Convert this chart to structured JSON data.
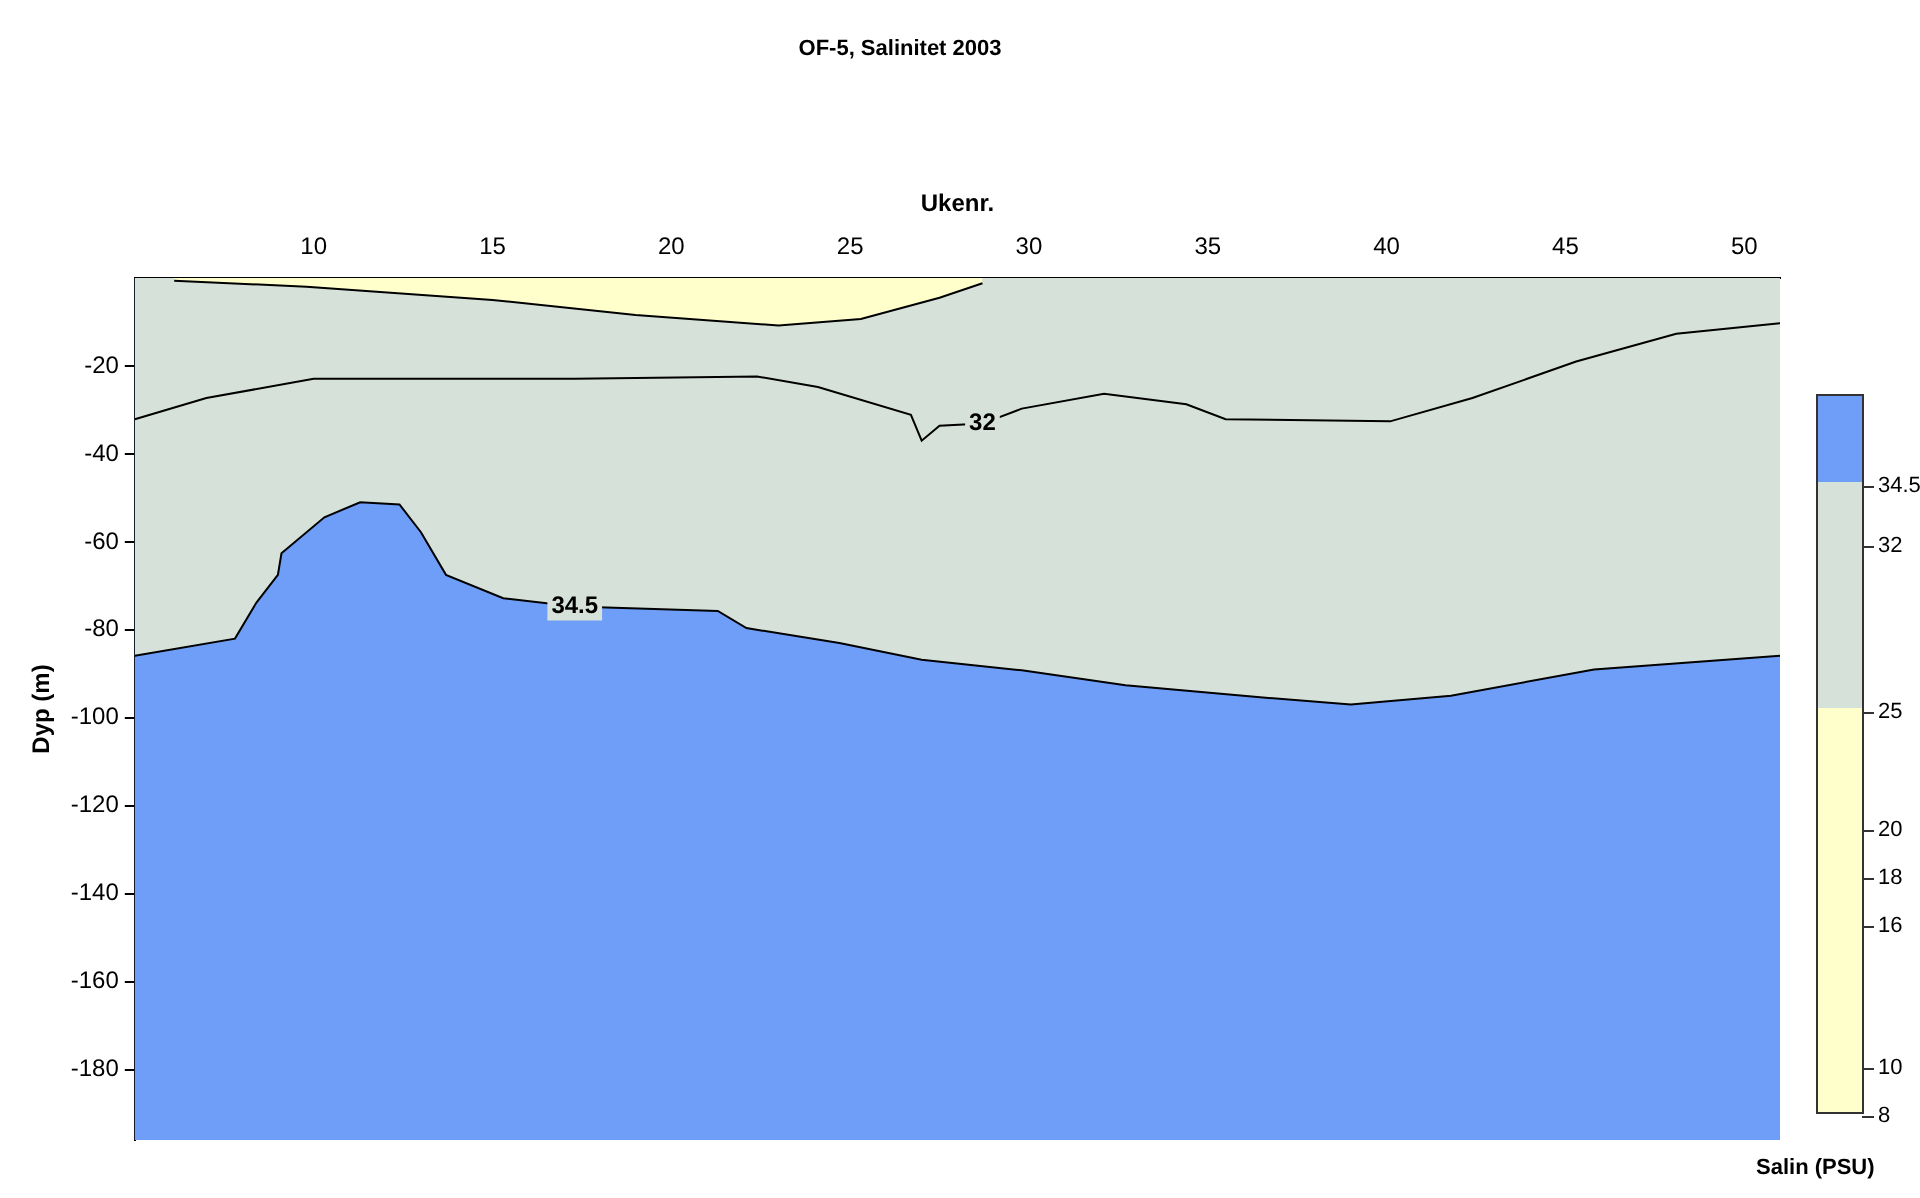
{
  "chart_data": {
    "type": "area",
    "title": "OF-5, Salinitet 2003",
    "xlabel": "Ukenr.",
    "ylabel": "Dyp (m)",
    "clabel": "Salin (PSU)",
    "xlim": [
      5,
      51
    ],
    "xticks": [
      10,
      15,
      20,
      25,
      30,
      35,
      40,
      45,
      50
    ],
    "ylim": [
      -196,
      0
    ],
    "yticks": [
      -180,
      -160,
      -140,
      -120,
      -100,
      -80,
      -60,
      -40,
      -20
    ],
    "marker": "none",
    "grid": false,
    "legend": false,
    "clim": [
      8,
      34.5
    ],
    "cticks": [
      8,
      10,
      16,
      18,
      20,
      25,
      32,
      34.5
    ],
    "colors": [
      "#ffffcc",
      "#ffffcc",
      "#ffffcc",
      "#ffffcc",
      "#ffffcc",
      "#d6e2d9",
      "#d6e2d9",
      "#6f9ef8"
    ],
    "series": [
      {
        "color": "#ffffcc",
        "x": [
          6.1,
          9.8,
          15,
          19,
          23,
          25.3,
          27.5,
          28.7
        ],
        "values": [
          -0.6,
          -2,
          -5,
          -8.4,
          -10.8,
          -9.3,
          -4.5,
          -1.2
        ]
      },
      {
        "name": "32",
        "type": "line",
        "color": "#000000",
        "x": [
          5,
          7,
          10,
          17.3,
          22.4,
          24.1,
          26.7,
          27,
          27.5,
          28.7,
          29.8,
          32.1,
          34.4,
          35.5,
          40.1,
          42.4,
          45.3,
          48.1,
          51
        ],
        "values": [
          -32.1,
          -27.3,
          -22.9,
          -22.9,
          -22.4,
          -24.8,
          -31.1,
          -37,
          -33.6,
          -33.1,
          -29.7,
          -26.3,
          -28.7,
          -32.1,
          -32.6,
          -27.3,
          -19,
          -12.7,
          -10.3
        ]
      },
      {
        "name": "34.5",
        "color": "#d6e2d9",
        "x": [
          5,
          7.8,
          8.4,
          9,
          9.1,
          10.3,
          11.3,
          12.4,
          13,
          13.7,
          15.3,
          17.3,
          21.3,
          22.1,
          24.7,
          27,
          29.8,
          32.7,
          36.7,
          39,
          41.8,
          45.8,
          51
        ],
        "values": [
          -85.9,
          -82,
          -73.8,
          -67.5,
          -62.6,
          -54.4,
          -51,
          -51.5,
          -57.8,
          -67.5,
          -72.8,
          -74.7,
          -75.7,
          -79.6,
          -83,
          -86.8,
          -89.2,
          -92.6,
          -95.5,
          -97,
          -95,
          -89,
          -85.9
        ]
      }
    ]
  }
}
